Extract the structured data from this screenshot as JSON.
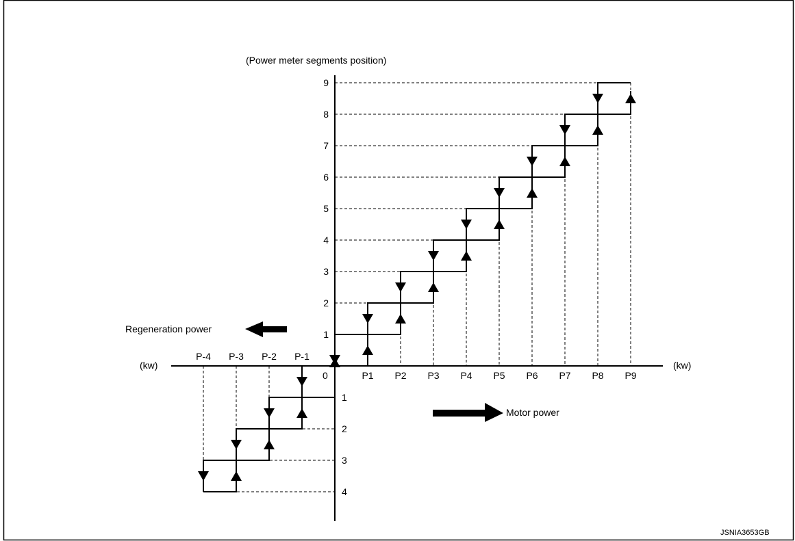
{
  "title": "(Power meter segments position)",
  "left_axis_label": "(kw)",
  "right_axis_label": "(kw)",
  "origin_label": "0",
  "regeneration_label": "Regeneration power",
  "motor_label": "Motor power",
  "figure_code": "JSNIA3653GB",
  "positive_power_ticks": [
    "P1",
    "P2",
    "P3",
    "P4",
    "P5",
    "P6",
    "P7",
    "P8",
    "P9"
  ],
  "negative_power_ticks": [
    "P-1",
    "P-2",
    "P-3",
    "P-4"
  ],
  "upper_segment_ticks": [
    "1",
    "2",
    "3",
    "4",
    "5",
    "6",
    "7",
    "8",
    "9"
  ],
  "lower_segment_ticks": [
    "1",
    "2",
    "3",
    "4"
  ]
}
